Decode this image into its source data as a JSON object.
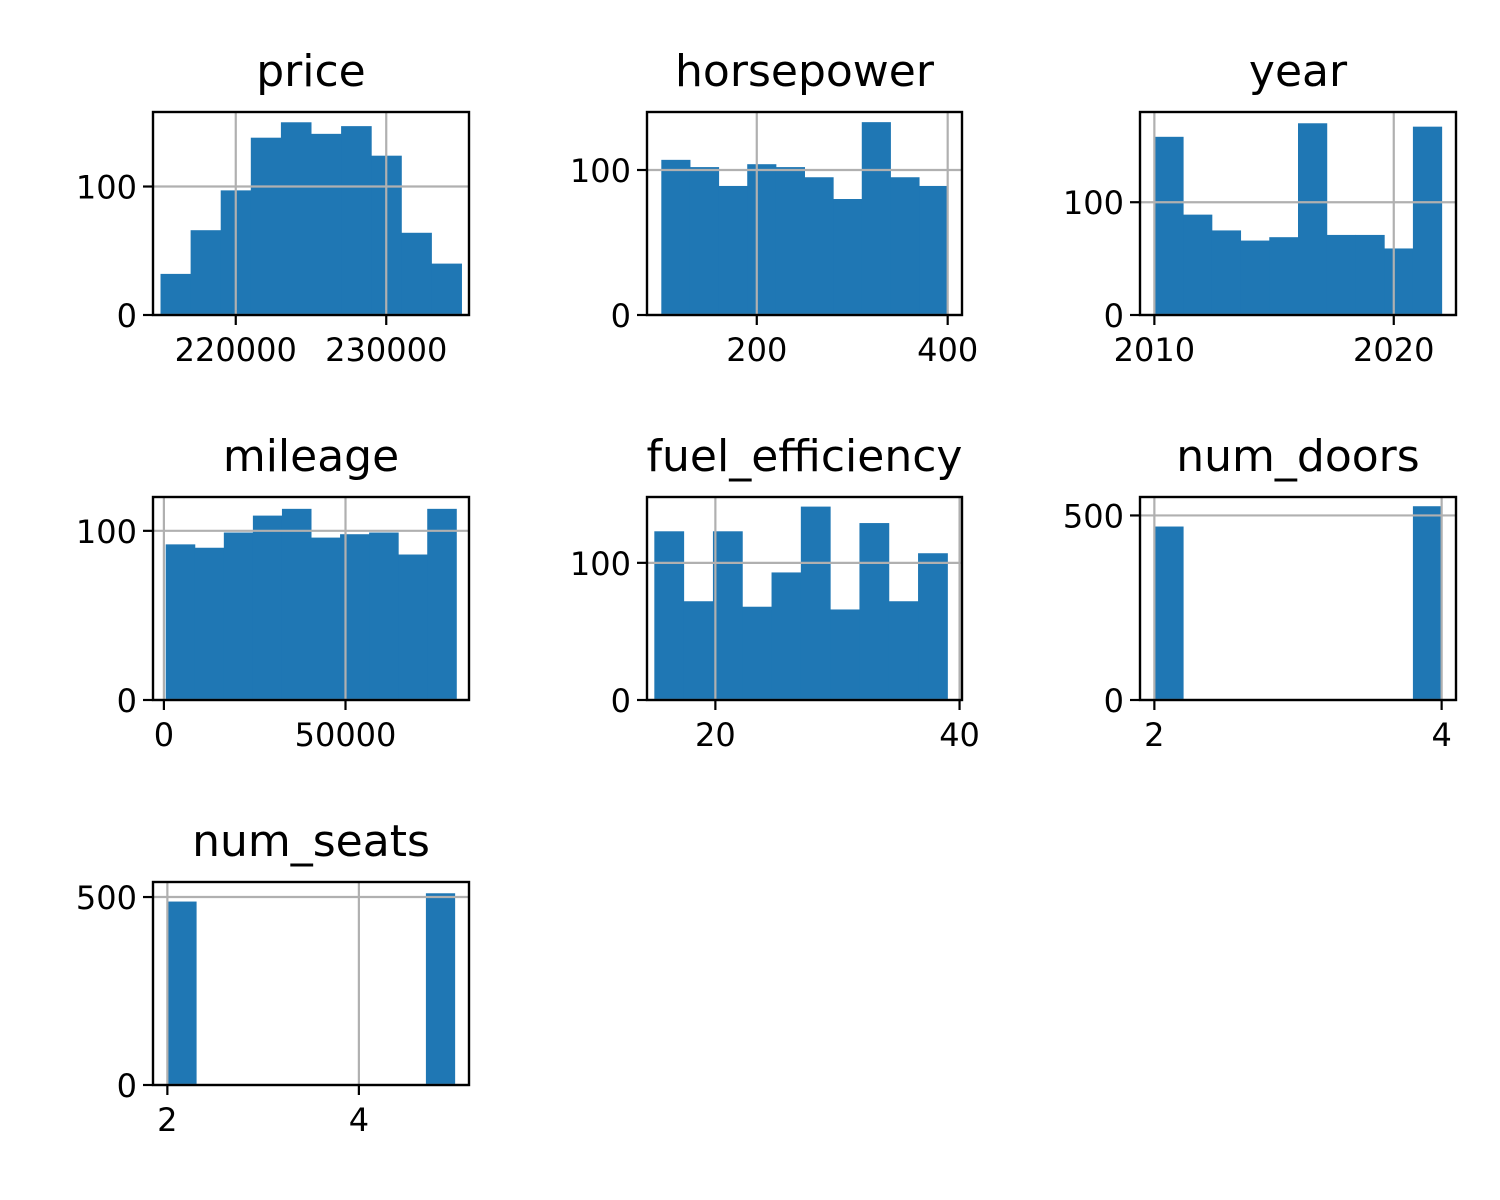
{
  "colors": {
    "bar": "#1f77b4",
    "grid": "#b0b0b0",
    "axis": "#000000"
  },
  "chart_data": [
    {
      "type": "bar",
      "title": "price",
      "xlim": [
        214500,
        235500
      ],
      "ylim": [
        0,
        158
      ],
      "bin_edges": [
        215000,
        217000,
        219000,
        221000,
        223000,
        225000,
        227000,
        229000,
        231000,
        233000,
        235000
      ],
      "counts": [
        32,
        66,
        97,
        138,
        150,
        141,
        147,
        124,
        64,
        40
      ],
      "xticks": [
        220000,
        230000
      ],
      "xtick_labels": [
        "220000",
        "230000"
      ],
      "yticks": [
        0,
        100
      ],
      "ytick_labels": [
        "0",
        "100"
      ],
      "grid": true
    },
    {
      "type": "bar",
      "title": "horsepower",
      "xlim": [
        85,
        415
      ],
      "ylim": [
        0,
        140
      ],
      "bin_edges": [
        100,
        130,
        160,
        190,
        220,
        250,
        280,
        310,
        340,
        370,
        400
      ],
      "counts": [
        107,
        102,
        89,
        104,
        102,
        95,
        80,
        133,
        95,
        89
      ],
      "xticks": [
        200,
        400
      ],
      "xtick_labels": [
        "200",
        "400"
      ],
      "yticks": [
        0,
        100
      ],
      "ytick_labels": [
        "0",
        "100"
      ],
      "grid": true
    },
    {
      "type": "bar",
      "title": "year",
      "xlim": [
        2009.4,
        2022.6
      ],
      "ylim": [
        0,
        180
      ],
      "bin_edges": [
        2010,
        2011.2,
        2012.4,
        2013.6,
        2014.8,
        2016,
        2017.2,
        2018.4,
        2019.6,
        2020.8,
        2022
      ],
      "counts": [
        158,
        89,
        75,
        66,
        69,
        170,
        71,
        71,
        59,
        167
      ],
      "xticks": [
        2010,
        2020
      ],
      "xtick_labels": [
        "2010",
        "2020"
      ],
      "yticks": [
        0,
        100
      ],
      "ytick_labels": [
        "0",
        "100"
      ],
      "grid": true
    },
    {
      "type": "bar",
      "title": "mileage",
      "xlim": [
        -3000,
        84000
      ],
      "ylim": [
        0,
        120
      ],
      "bin_edges": [
        500,
        8500,
        16500,
        24500,
        32500,
        40500,
        48500,
        56500,
        64500,
        72500,
        80500
      ],
      "counts": [
        92,
        90,
        99,
        109,
        113,
        96,
        98,
        99,
        86,
        113
      ],
      "xticks": [
        0,
        50000
      ],
      "xtick_labels": [
        "0",
        "50000"
      ],
      "yticks": [
        0,
        100
      ],
      "ytick_labels": [
        "0",
        "100"
      ],
      "grid": true
    },
    {
      "type": "bar",
      "title": "fuel_efficiency",
      "xlim": [
        14.4,
        40.2
      ],
      "ylim": [
        0,
        148
      ],
      "bin_edges": [
        15,
        17.4,
        19.8,
        22.2,
        24.6,
        27,
        29.4,
        31.8,
        34.2,
        36.6,
        39
      ],
      "counts": [
        123,
        72,
        123,
        68,
        93,
        141,
        66,
        129,
        72,
        107
      ],
      "xticks": [
        20,
        40
      ],
      "xtick_labels": [
        "20",
        "40"
      ],
      "yticks": [
        0,
        100
      ],
      "ytick_labels": [
        "0",
        "100"
      ],
      "grid": true
    },
    {
      "type": "bar",
      "title": "num_doors",
      "xlim": [
        1.9,
        4.1
      ],
      "ylim": [
        0,
        550
      ],
      "bin_edges": [
        2,
        2.2,
        2.4,
        2.6,
        2.8,
        3,
        3.2,
        3.4,
        3.6,
        3.8,
        4
      ],
      "counts": [
        470,
        0,
        0,
        0,
        0,
        0,
        0,
        0,
        0,
        525
      ],
      "xticks": [
        2,
        4
      ],
      "xtick_labels": [
        "2",
        "4"
      ],
      "yticks": [
        0,
        500
      ],
      "ytick_labels": [
        "0",
        "500"
      ],
      "grid": true
    },
    {
      "type": "bar",
      "title": "num_seats",
      "xlim": [
        1.85,
        5.15
      ],
      "ylim": [
        0,
        540
      ],
      "bin_edges": [
        2,
        2.3,
        2.6,
        2.9,
        3.2,
        3.5,
        3.8,
        4.1,
        4.4,
        4.7,
        5
      ],
      "counts": [
        488,
        0,
        0,
        0,
        0,
        0,
        0,
        0,
        0,
        510
      ],
      "xticks": [
        2,
        4
      ],
      "xtick_labels": [
        "2",
        "4"
      ],
      "yticks": [
        0,
        500
      ],
      "ytick_labels": [
        "0",
        "500"
      ],
      "grid": true
    }
  ]
}
